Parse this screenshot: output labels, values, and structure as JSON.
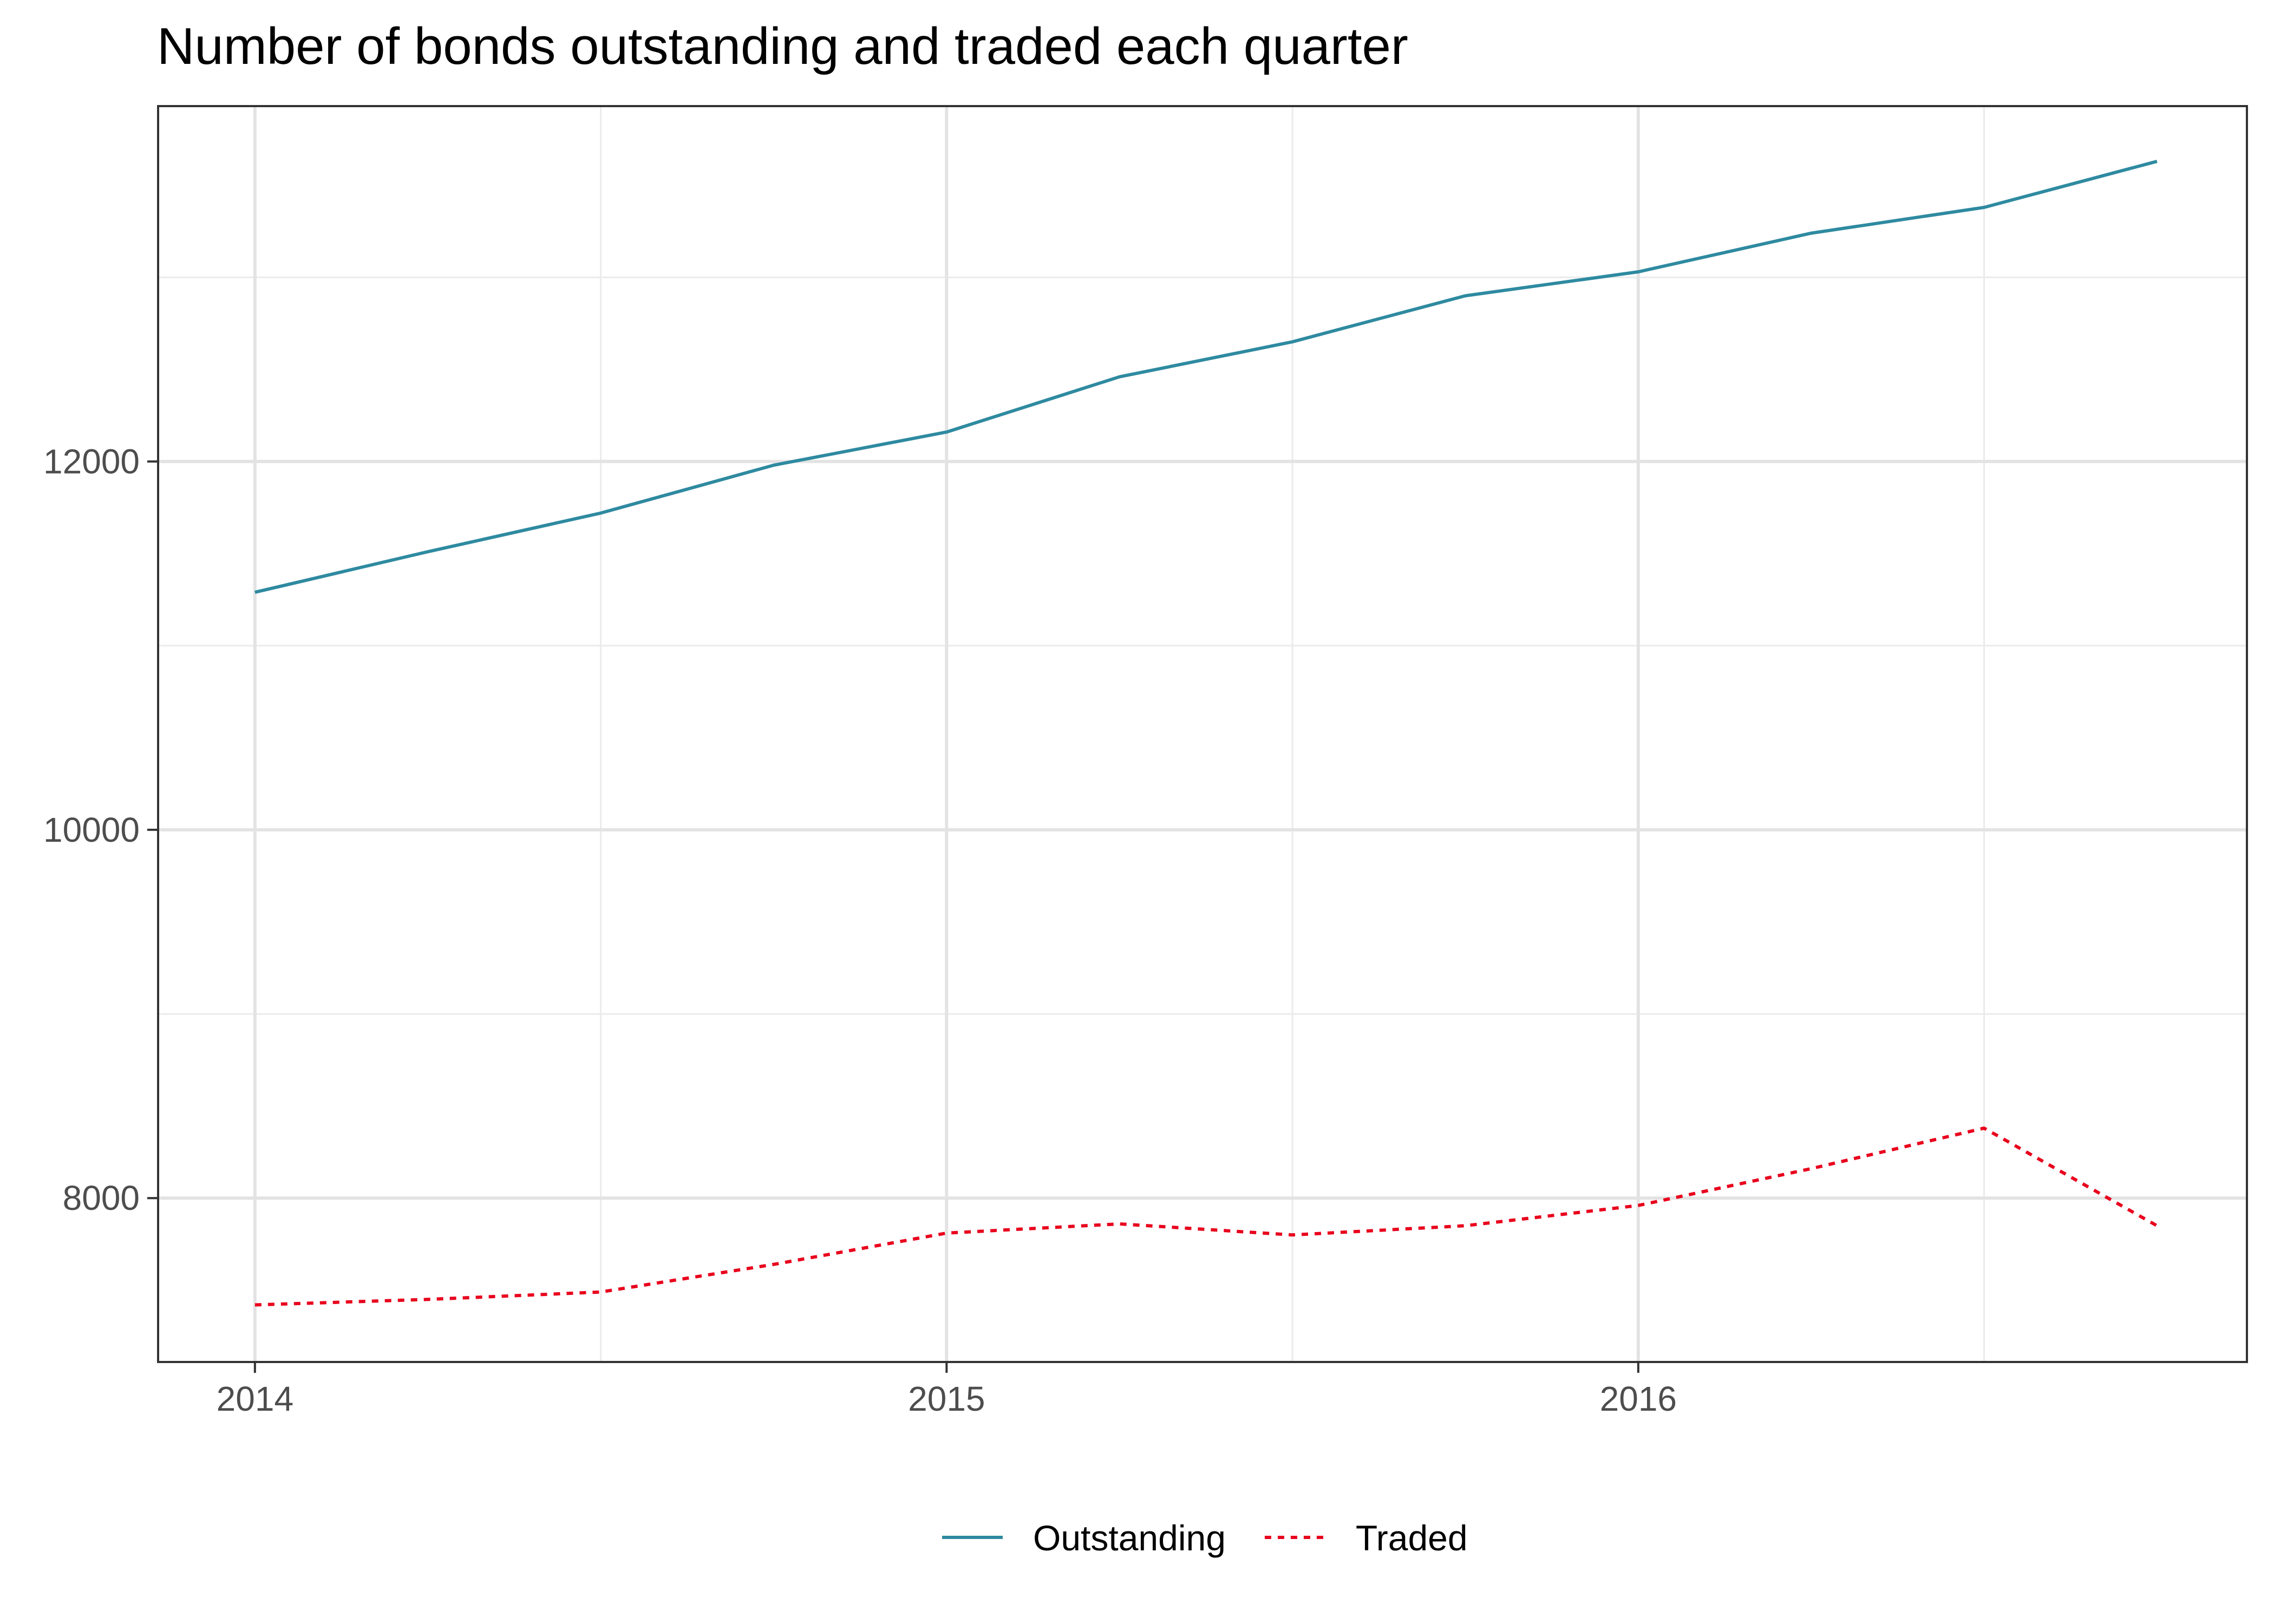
{
  "chart_data": {
    "type": "line",
    "title": "Number of bonds outstanding and traded each quarter",
    "xlabel": "",
    "ylabel": "",
    "x": [
      2014.0,
      2014.25,
      2014.5,
      2014.75,
      2015.0,
      2015.25,
      2015.5,
      2015.75,
      2016.0,
      2016.25,
      2016.5,
      2016.75
    ],
    "xlim": [
      2013.86,
      2016.88
    ],
    "ylim": [
      7110,
      13930
    ],
    "x_ticks": [
      2014,
      2015,
      2016
    ],
    "x_tick_labels": [
      "2014",
      "2015",
      "2016"
    ],
    "x_minor_ticks": [
      2014.5,
      2015.5,
      2016.5
    ],
    "y_ticks": [
      8000,
      10000,
      12000
    ],
    "y_tick_labels": [
      "8000",
      "10000",
      "12000"
    ],
    "y_minor_ticks": [
      9000,
      11000,
      13000
    ],
    "grid": true,
    "legend_position": "bottom",
    "series": [
      {
        "name": "Outstanding",
        "color": "#2e8aa0",
        "dash": "solid",
        "values": [
          11290,
          11510,
          11720,
          11980,
          12160,
          12460,
          12650,
          12900,
          13030,
          13240,
          13380,
          13630
        ]
      },
      {
        "name": "Traded",
        "color": "#e8001c",
        "dash": "dotted",
        "values": [
          7420,
          7450,
          7490,
          7640,
          7810,
          7860,
          7800,
          7850,
          7960,
          8160,
          8380,
          7850
        ]
      }
    ]
  }
}
